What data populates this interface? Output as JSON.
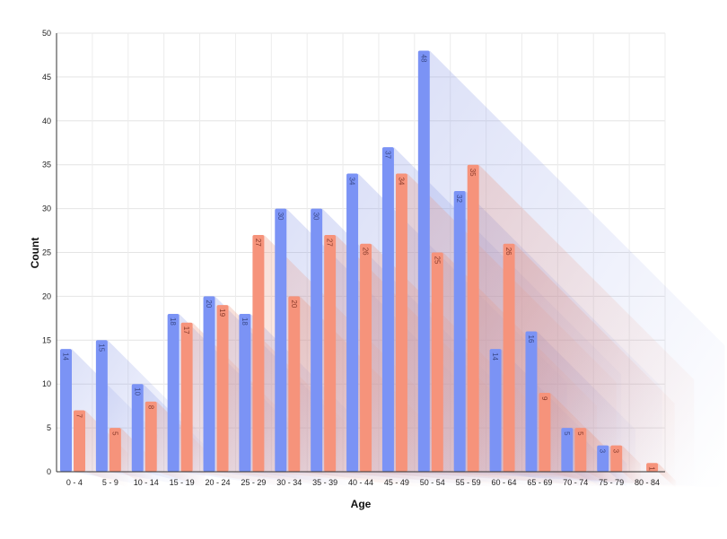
{
  "chart_data": {
    "type": "bar",
    "title": "",
    "xlabel": "Age",
    "ylabel": "Count",
    "ylim": [
      0,
      50
    ],
    "yticks": [
      0,
      5,
      10,
      15,
      20,
      25,
      30,
      35,
      40,
      45,
      50
    ],
    "grid": true,
    "legend": "none",
    "categories": [
      "0 - 4",
      "5 - 9",
      "10 - 14",
      "15 - 19",
      "20 - 24",
      "25 - 29",
      "30 - 34",
      "35 - 39",
      "40 - 44",
      "45 - 49",
      "50 - 54",
      "55 - 59",
      "60 - 64",
      "65 - 69",
      "70 - 74",
      "75 - 79",
      "80 - 84"
    ],
    "series": [
      {
        "color": "#7b93f5",
        "values": [
          14,
          15,
          10,
          18,
          20,
          18,
          30,
          30,
          34,
          37,
          48,
          32,
          14,
          16,
          5,
          3,
          0
        ]
      },
      {
        "color": "#f6937b",
        "values": [
          7,
          5,
          8,
          17,
          19,
          27,
          20,
          27,
          26,
          34,
          25,
          35,
          26,
          9,
          5,
          3,
          1
        ]
      }
    ]
  }
}
